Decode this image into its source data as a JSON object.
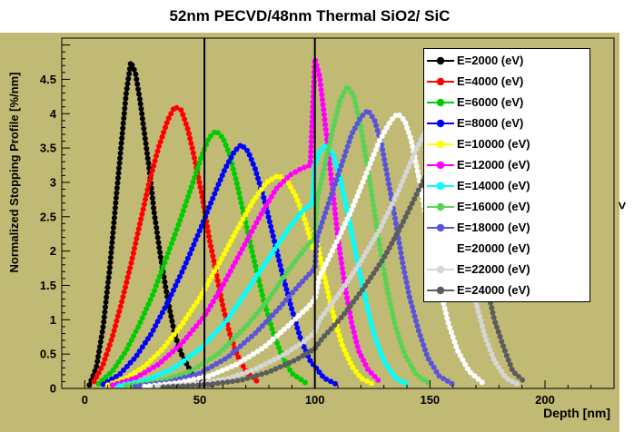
{
  "title": "52nm PECVD/48nm Thermal SiO2/ SiC",
  "right_glyph": ">",
  "chart_data": {
    "type": "line",
    "title": "52nm PECVD/48nm Thermal SiO2/ SiC",
    "xlabel": "Depth [nm]",
    "ylabel": "Normalized Stopping Profile [%/nm]",
    "xlim": [
      -10,
      230
    ],
    "ylim": [
      0,
      5.1
    ],
    "x_ticks": [
      0,
      50,
      100,
      150,
      200
    ],
    "x_minor_step": 10,
    "y_ticks": [
      0,
      0.5,
      1,
      1.5,
      2,
      2.5,
      3,
      3.5,
      4,
      4.5
    ],
    "y_minor_step": 0.1,
    "grid": false,
    "legend_position": "top-right",
    "background_color": "#c1ba74",
    "frame_color": "#000000",
    "boundary_lines_x": [
      52,
      100
    ],
    "marker_style": "filled-circle",
    "series": [
      {
        "name": "E=2000 (eV)",
        "color": "#000000",
        "points": [
          [
            2,
            0.05
          ],
          [
            5,
            0.3
          ],
          [
            8,
            0.9
          ],
          [
            11,
            1.8
          ],
          [
            14,
            2.9
          ],
          [
            16,
            3.6
          ],
          [
            18,
            4.3
          ],
          [
            20,
            4.75
          ],
          [
            22,
            4.6
          ],
          [
            24,
            4.2
          ],
          [
            26,
            3.7
          ],
          [
            28,
            3.2
          ],
          [
            30,
            2.6
          ],
          [
            33,
            1.9
          ],
          [
            36,
            1.3
          ],
          [
            39,
            0.8
          ],
          [
            42,
            0.5
          ],
          [
            46,
            0.25
          ],
          [
            50,
            0.12
          ],
          [
            56,
            0.05
          ]
        ]
      },
      {
        "name": "E=4000 (eV)",
        "color": "#ff0000",
        "points": [
          [
            4,
            0.1
          ],
          [
            8,
            0.35
          ],
          [
            12,
            0.75
          ],
          [
            16,
            1.25
          ],
          [
            20,
            1.8
          ],
          [
            24,
            2.4
          ],
          [
            28,
            3.0
          ],
          [
            32,
            3.5
          ],
          [
            36,
            3.9
          ],
          [
            39,
            4.1
          ],
          [
            42,
            4.05
          ],
          [
            45,
            3.75
          ],
          [
            48,
            3.3
          ],
          [
            51,
            2.8
          ],
          [
            54,
            2.2
          ],
          [
            57,
            1.7
          ],
          [
            60,
            1.2
          ],
          [
            63,
            0.8
          ],
          [
            66,
            0.5
          ],
          [
            70,
            0.25
          ],
          [
            75,
            0.1
          ]
        ]
      },
      {
        "name": "E=6000 (eV)",
        "color": "#00cc00",
        "points": [
          [
            6,
            0.07
          ],
          [
            12,
            0.25
          ],
          [
            18,
            0.55
          ],
          [
            24,
            0.95
          ],
          [
            30,
            1.4
          ],
          [
            36,
            1.95
          ],
          [
            42,
            2.5
          ],
          [
            47,
            3.0
          ],
          [
            51,
            3.4
          ],
          [
            54,
            3.65
          ],
          [
            57,
            3.75
          ],
          [
            60,
            3.65
          ],
          [
            63,
            3.4
          ],
          [
            66,
            3.0
          ],
          [
            70,
            2.4
          ],
          [
            74,
            1.8
          ],
          [
            78,
            1.25
          ],
          [
            82,
            0.8
          ],
          [
            86,
            0.45
          ],
          [
            90,
            0.22
          ],
          [
            96,
            0.08
          ]
        ]
      },
      {
        "name": "E=8000 (eV)",
        "color": "#0000ff",
        "points": [
          [
            8,
            0.06
          ],
          [
            15,
            0.2
          ],
          [
            22,
            0.45
          ],
          [
            29,
            0.8
          ],
          [
            36,
            1.25
          ],
          [
            43,
            1.75
          ],
          [
            50,
            2.3
          ],
          [
            56,
            2.8
          ],
          [
            61,
            3.2
          ],
          [
            65,
            3.45
          ],
          [
            68,
            3.55
          ],
          [
            71,
            3.45
          ],
          [
            74,
            3.2
          ],
          [
            78,
            2.75
          ],
          [
            82,
            2.2
          ],
          [
            86,
            1.65
          ],
          [
            90,
            1.15
          ],
          [
            94,
            0.7
          ],
          [
            98,
            0.4
          ],
          [
            100,
            0.32
          ],
          [
            104,
            0.15
          ],
          [
            110,
            0.05
          ]
        ]
      },
      {
        "name": "E=10000 (eV)",
        "color": "#ffff00",
        "points": [
          [
            10,
            0.05
          ],
          [
            18,
            0.15
          ],
          [
            26,
            0.32
          ],
          [
            34,
            0.58
          ],
          [
            42,
            0.92
          ],
          [
            50,
            1.32
          ],
          [
            58,
            1.8
          ],
          [
            66,
            2.3
          ],
          [
            73,
            2.72
          ],
          [
            79,
            3.0
          ],
          [
            84,
            3.1
          ],
          [
            88,
            3.02
          ],
          [
            92,
            2.78
          ],
          [
            96,
            2.42
          ],
          [
            99,
            2.05
          ],
          [
            100,
            2.3
          ],
          [
            103,
            1.8
          ],
          [
            106,
            1.35
          ],
          [
            109,
            0.95
          ],
          [
            112,
            0.62
          ],
          [
            116,
            0.33
          ],
          [
            120,
            0.15
          ],
          [
            126,
            0.05
          ]
        ]
      },
      {
        "name": "E=12000 (eV)",
        "color": "#ff00ff",
        "points": [
          [
            12,
            0.05
          ],
          [
            22,
            0.15
          ],
          [
            32,
            0.35
          ],
          [
            42,
            0.65
          ],
          [
            52,
            1.05
          ],
          [
            60,
            1.5
          ],
          [
            68,
            2.0
          ],
          [
            76,
            2.5
          ],
          [
            83,
            2.9
          ],
          [
            89,
            3.1
          ],
          [
            94,
            3.2
          ],
          [
            98,
            3.25
          ],
          [
            100,
            4.8
          ],
          [
            102,
            4.55
          ],
          [
            104,
            4.0
          ],
          [
            107,
            3.1
          ],
          [
            110,
            2.2
          ],
          [
            113,
            1.5
          ],
          [
            116,
            0.95
          ],
          [
            119,
            0.55
          ],
          [
            123,
            0.28
          ],
          [
            128,
            0.1
          ]
        ]
      },
      {
        "name": "E=14000 (eV)",
        "color": "#00ffff",
        "points": [
          [
            15,
            0.04
          ],
          [
            27,
            0.12
          ],
          [
            39,
            0.3
          ],
          [
            51,
            0.6
          ],
          [
            62,
            1.0
          ],
          [
            72,
            1.5
          ],
          [
            81,
            1.95
          ],
          [
            89,
            2.35
          ],
          [
            95,
            2.6
          ],
          [
            99,
            2.7
          ],
          [
            100,
            3.25
          ],
          [
            102,
            3.45
          ],
          [
            105,
            3.55
          ],
          [
            108,
            3.4
          ],
          [
            111,
            3.05
          ],
          [
            114,
            2.6
          ],
          [
            117,
            2.1
          ],
          [
            120,
            1.6
          ],
          [
            123,
            1.15
          ],
          [
            126,
            0.75
          ],
          [
            130,
            0.4
          ],
          [
            135,
            0.15
          ],
          [
            141,
            0.05
          ]
        ]
      },
      {
        "name": "E=16000 (eV)",
        "color": "#59d354",
        "points": [
          [
            18,
            0.04
          ],
          [
            32,
            0.1
          ],
          [
            46,
            0.25
          ],
          [
            58,
            0.5
          ],
          [
            70,
            0.9
          ],
          [
            80,
            1.3
          ],
          [
            88,
            1.7
          ],
          [
            96,
            2.05
          ],
          [
            100,
            2.2
          ],
          [
            101,
            2.75
          ],
          [
            104,
            3.2
          ],
          [
            108,
            3.8
          ],
          [
            111,
            4.2
          ],
          [
            114,
            4.4
          ],
          [
            117,
            4.25
          ],
          [
            120,
            3.8
          ],
          [
            123,
            3.2
          ],
          [
            126,
            2.55
          ],
          [
            129,
            1.9
          ],
          [
            132,
            1.35
          ],
          [
            135,
            0.9
          ],
          [
            139,
            0.5
          ],
          [
            144,
            0.2
          ],
          [
            150,
            0.07
          ]
        ]
      },
      {
        "name": "E=18000 (eV)",
        "color": "#5a54d8",
        "points": [
          [
            22,
            0.03
          ],
          [
            36,
            0.09
          ],
          [
            50,
            0.22
          ],
          [
            62,
            0.45
          ],
          [
            74,
            0.8
          ],
          [
            84,
            1.15
          ],
          [
            93,
            1.5
          ],
          [
            100,
            1.75
          ],
          [
            101,
            2.2
          ],
          [
            106,
            2.7
          ],
          [
            111,
            3.2
          ],
          [
            116,
            3.7
          ],
          [
            120,
            3.95
          ],
          [
            123,
            4.05
          ],
          [
            126,
            3.9
          ],
          [
            129,
            3.55
          ],
          [
            132,
            3.0
          ],
          [
            135,
            2.45
          ],
          [
            138,
            1.85
          ],
          [
            141,
            1.35
          ],
          [
            145,
            0.85
          ],
          [
            149,
            0.45
          ],
          [
            154,
            0.18
          ],
          [
            160,
            0.06
          ]
        ]
      },
      {
        "name": "E=20000 (eV)",
        "color": "#ffffff",
        "points": [
          [
            26,
            0.03
          ],
          [
            40,
            0.08
          ],
          [
            54,
            0.18
          ],
          [
            66,
            0.35
          ],
          [
            78,
            0.6
          ],
          [
            88,
            0.9
          ],
          [
            96,
            1.15
          ],
          [
            100,
            1.3
          ],
          [
            102,
            1.62
          ],
          [
            109,
            2.1
          ],
          [
            116,
            2.6
          ],
          [
            122,
            3.1
          ],
          [
            128,
            3.6
          ],
          [
            133,
            3.9
          ],
          [
            136,
            4.0
          ],
          [
            139,
            3.9
          ],
          [
            142,
            3.6
          ],
          [
            145,
            3.1
          ],
          [
            148,
            2.55
          ],
          [
            151,
            2.0
          ],
          [
            154,
            1.5
          ],
          [
            158,
            0.95
          ],
          [
            162,
            0.55
          ],
          [
            167,
            0.25
          ],
          [
            173,
            0.08
          ]
        ]
      },
      {
        "name": "E=22000 (eV)",
        "color": "#d6d6d6",
        "points": [
          [
            30,
            0.02
          ],
          [
            46,
            0.06
          ],
          [
            62,
            0.14
          ],
          [
            74,
            0.28
          ],
          [
            86,
            0.48
          ],
          [
            96,
            0.7
          ],
          [
            100,
            0.82
          ],
          [
            102,
            1.0
          ],
          [
            111,
            1.4
          ],
          [
            120,
            1.85
          ],
          [
            128,
            2.3
          ],
          [
            136,
            2.85
          ],
          [
            143,
            3.4
          ],
          [
            148,
            3.75
          ],
          [
            151,
            3.85
          ],
          [
            154,
            3.75
          ],
          [
            157,
            3.45
          ],
          [
            160,
            2.95
          ],
          [
            163,
            2.4
          ],
          [
            166,
            1.85
          ],
          [
            170,
            1.25
          ],
          [
            174,
            0.75
          ],
          [
            178,
            0.4
          ],
          [
            183,
            0.15
          ],
          [
            189,
            0.05
          ]
        ]
      },
      {
        "name": "E=24000 (eV)",
        "color": "#5c5c5c",
        "points": [
          [
            34,
            0.02
          ],
          [
            52,
            0.05
          ],
          [
            68,
            0.12
          ],
          [
            80,
            0.24
          ],
          [
            92,
            0.42
          ],
          [
            100,
            0.58
          ],
          [
            103,
            0.72
          ],
          [
            112,
            1.05
          ],
          [
            121,
            1.45
          ],
          [
            130,
            1.9
          ],
          [
            138,
            2.4
          ],
          [
            146,
            2.95
          ],
          [
            152,
            3.35
          ],
          [
            157,
            3.6
          ],
          [
            160,
            3.6
          ],
          [
            163,
            3.4
          ],
          [
            166,
            3.0
          ],
          [
            169,
            2.5
          ],
          [
            172,
            1.95
          ],
          [
            175,
            1.45
          ],
          [
            178,
            1.0
          ],
          [
            182,
            0.6
          ],
          [
            186,
            0.25
          ],
          [
            191,
            0.1
          ]
        ]
      }
    ]
  }
}
